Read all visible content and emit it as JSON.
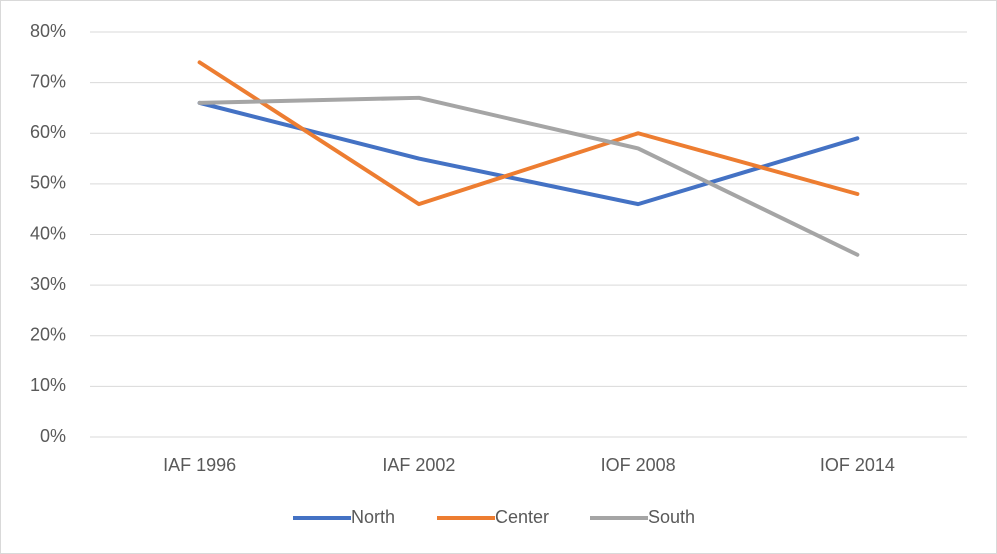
{
  "chart_data": {
    "type": "line",
    "categories": [
      "IAF 1996",
      "IAF 2002",
      "IOF 2008",
      "IOF 2014"
    ],
    "series": [
      {
        "name": "North",
        "color": "#4472c4",
        "values": [
          66,
          55,
          46,
          59
        ]
      },
      {
        "name": "Center",
        "color": "#ed7d31",
        "values": [
          74,
          46,
          60,
          48
        ]
      },
      {
        "name": "South",
        "color": "#a5a5a5",
        "values": [
          66,
          67,
          57,
          36
        ]
      }
    ],
    "ylim": [
      0,
      80
    ],
    "yticks": [
      {
        "value": 0,
        "label": "0%"
      },
      {
        "value": 10,
        "label": "10%"
      },
      {
        "value": 20,
        "label": "20%"
      },
      {
        "value": 30,
        "label": "30%"
      },
      {
        "value": 40,
        "label": "40%"
      },
      {
        "value": 50,
        "label": "50%"
      },
      {
        "value": 60,
        "label": "60%"
      },
      {
        "value": 70,
        "label": "70%"
      },
      {
        "value": 80,
        "label": "80%"
      }
    ],
    "grid": true,
    "legend": "bottom"
  }
}
